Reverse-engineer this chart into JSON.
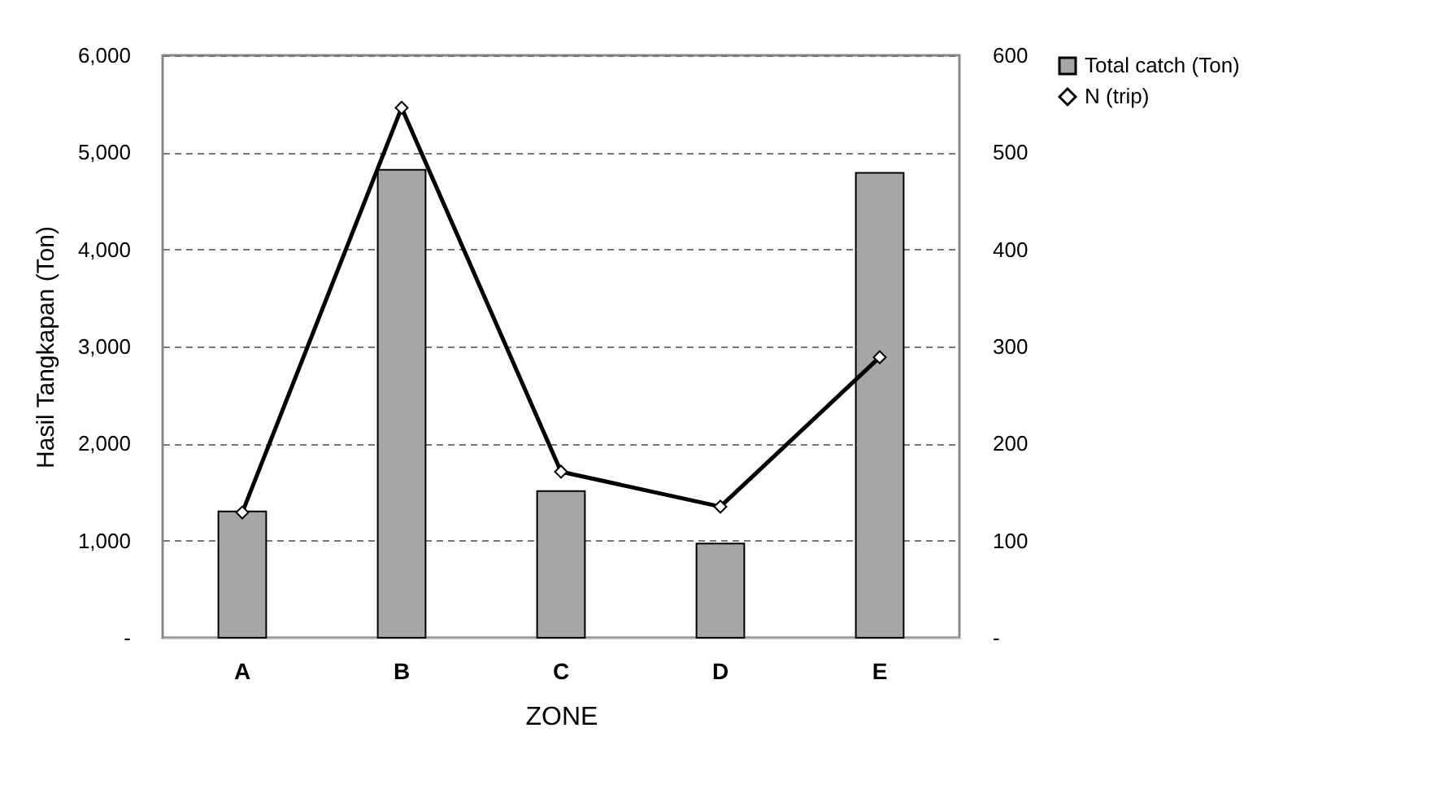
{
  "chart_data": {
    "type": "bar",
    "xlabel": "ZONE",
    "ylabel": "Hasil Tangkapan (Ton)",
    "categories": [
      "A",
      "B",
      "C",
      "D",
      "E"
    ],
    "series": [
      {
        "name": "Total catch (Ton)",
        "type": "bar",
        "color": "#a6a6a6",
        "values": [
          1300,
          4820,
          1510,
          970,
          4790
        ]
      },
      {
        "name": "N (trip)",
        "type": "line",
        "axis": "y2",
        "color": "#000000",
        "marker": "diamond",
        "values": [
          129,
          546,
          171,
          135,
          289
        ]
      }
    ],
    "ylim": [
      0,
      6000
    ],
    "yticks": [
      {
        "value": 0,
        "label": "-"
      },
      {
        "value": 1000,
        "label": "1,000"
      },
      {
        "value": 2000,
        "label": "2,000"
      },
      {
        "value": 3000,
        "label": "3,000"
      },
      {
        "value": 4000,
        "label": "4,000"
      },
      {
        "value": 5000,
        "label": "5,000"
      },
      {
        "value": 6000,
        "label": "6,000"
      }
    ],
    "y2lim": [
      0,
      600
    ],
    "y2ticks": [
      {
        "value": 0,
        "label": "-"
      },
      100,
      200,
      300,
      400,
      500,
      600
    ],
    "grid": "y",
    "legend": "right"
  }
}
